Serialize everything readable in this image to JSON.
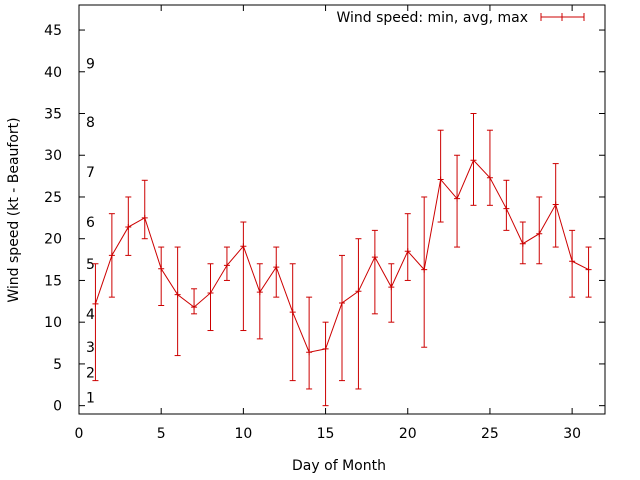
{
  "chart_data": {
    "type": "line",
    "title": "",
    "xlabel": "Day of Month",
    "ylabel": "Wind speed (kt - Beaufort)",
    "xlim": [
      0,
      32
    ],
    "ylim": [
      -1,
      48
    ],
    "x_ticks": [
      0,
      5,
      10,
      15,
      20,
      25,
      30
    ],
    "y_ticks": [
      0,
      5,
      10,
      15,
      20,
      25,
      30,
      35,
      40,
      45
    ],
    "beaufort_labels": [
      {
        "label": "1",
        "value": 1
      },
      {
        "label": "2",
        "value": 4
      },
      {
        "label": "3",
        "value": 7
      },
      {
        "label": "4",
        "value": 11
      },
      {
        "label": "5",
        "value": 17
      },
      {
        "label": "6",
        "value": 22
      },
      {
        "label": "7",
        "value": 28
      },
      {
        "label": "8",
        "value": 34
      },
      {
        "label": "9",
        "value": 41
      }
    ],
    "legend": {
      "label": "Wind speed: min, avg, max",
      "position": "top-right"
    },
    "series": [
      {
        "name": "Wind speed: min, avg, max",
        "color": "#cc0000",
        "points": [
          {
            "x": 1,
            "min": 3,
            "avg": 12.2,
            "max": 17
          },
          {
            "x": 2,
            "min": 13,
            "avg": 18,
            "max": 23
          },
          {
            "x": 3,
            "min": 18,
            "avg": 21.4,
            "max": 25
          },
          {
            "x": 4,
            "min": 20,
            "avg": 22.5,
            "max": 27
          },
          {
            "x": 5,
            "min": 12,
            "avg": 16.4,
            "max": 19
          },
          {
            "x": 6,
            "min": 6,
            "avg": 13.3,
            "max": 19
          },
          {
            "x": 7,
            "min": 11,
            "avg": 11.8,
            "max": 14
          },
          {
            "x": 8,
            "min": 9,
            "avg": 13.5,
            "max": 17
          },
          {
            "x": 9,
            "min": 15,
            "avg": 16.8,
            "max": 19
          },
          {
            "x": 10,
            "min": 9,
            "avg": 19.1,
            "max": 22
          },
          {
            "x": 11,
            "min": 8,
            "avg": 13.6,
            "max": 17
          },
          {
            "x": 12,
            "min": 13,
            "avg": 16.6,
            "max": 19
          },
          {
            "x": 13,
            "min": 3,
            "avg": 11.2,
            "max": 17
          },
          {
            "x": 14,
            "min": 2,
            "avg": 6.4,
            "max": 13
          },
          {
            "x": 15,
            "min": 0,
            "avg": 6.8,
            "max": 10
          },
          {
            "x": 16,
            "min": 3,
            "avg": 12.3,
            "max": 18
          },
          {
            "x": 17,
            "min": 2,
            "avg": 13.7,
            "max": 20
          },
          {
            "x": 18,
            "min": 11,
            "avg": 17.8,
            "max": 21
          },
          {
            "x": 19,
            "min": 10,
            "avg": 14.2,
            "max": 17
          },
          {
            "x": 20,
            "min": 15,
            "avg": 18.5,
            "max": 23
          },
          {
            "x": 21,
            "min": 7,
            "avg": 16.3,
            "max": 25
          },
          {
            "x": 22,
            "min": 22,
            "avg": 27.1,
            "max": 33
          },
          {
            "x": 23,
            "min": 19,
            "avg": 24.8,
            "max": 30
          },
          {
            "x": 24,
            "min": 24,
            "avg": 29.4,
            "max": 35
          },
          {
            "x": 25,
            "min": 24,
            "avg": 27.3,
            "max": 33
          },
          {
            "x": 26,
            "min": 21,
            "avg": 23.6,
            "max": 27
          },
          {
            "x": 27,
            "min": 17,
            "avg": 19.4,
            "max": 22
          },
          {
            "x": 28,
            "min": 17,
            "avg": 20.6,
            "max": 25
          },
          {
            "x": 29,
            "min": 19,
            "avg": 24.1,
            "max": 29
          },
          {
            "x": 30,
            "min": 13,
            "avg": 17.3,
            "max": 21
          },
          {
            "x": 31,
            "min": 13,
            "avg": 16.3,
            "max": 19
          }
        ]
      }
    ]
  }
}
